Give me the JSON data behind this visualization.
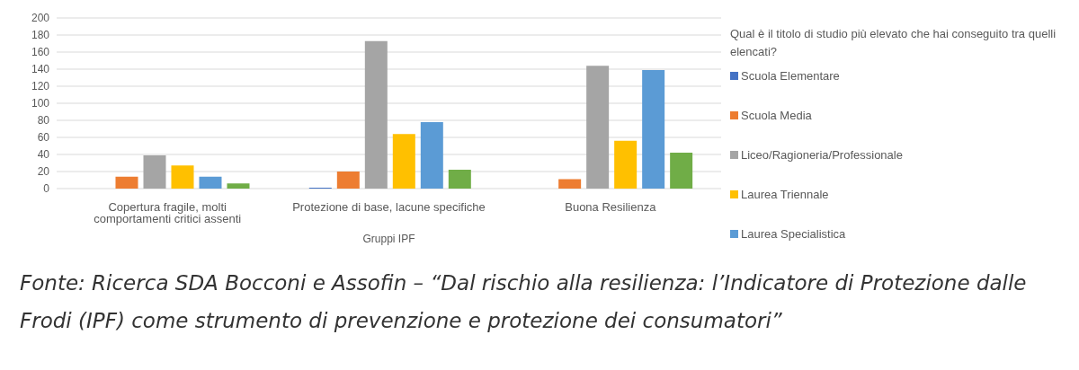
{
  "chart_data": {
    "type": "bar",
    "xlabel": "Gruppi IPF",
    "legend_title": "Qual è il titolo di studio più elevato che hai conseguito tra quelli elencati?",
    "categories": [
      "Copertura fragile, molti comportamenti critici assenti",
      "Protezione di base, lacune specifiche",
      "Buona Resilienza"
    ],
    "series": [
      {
        "name": "Scuola Elementare",
        "color": "#4472c4",
        "values": [
          0,
          1,
          0
        ]
      },
      {
        "name": "Scuola Media",
        "color": "#ed7d31",
        "values": [
          14,
          20,
          11
        ]
      },
      {
        "name": "Liceo/Ragioneria/Professionale",
        "color": "#a5a5a5",
        "values": [
          39,
          173,
          144
        ]
      },
      {
        "name": "Laurea Triennale",
        "color": "#ffc000",
        "values": [
          27,
          64,
          56
        ]
      },
      {
        "name": "Laurea Specialistica",
        "color": "#5b9bd5",
        "values": [
          14,
          78,
          139
        ]
      },
      {
        "color": "#70ad47",
        "values": [
          6,
          22,
          42
        ]
      }
    ],
    "ylim": [
      0,
      200
    ],
    "yticks": [
      0,
      20,
      40,
      60,
      80,
      100,
      120,
      140,
      160,
      180,
      200
    ],
    "grid": "y",
    "legend": "right",
    "annotations": [
      "Fonte: Ricerca SDA Bocconi e Assofin – “Dal rischio alla resilienza: l’Indicatore di Protezione dalle Frodi (IPF) come strumento di prevenzione e protezione dei consumatori”"
    ]
  }
}
